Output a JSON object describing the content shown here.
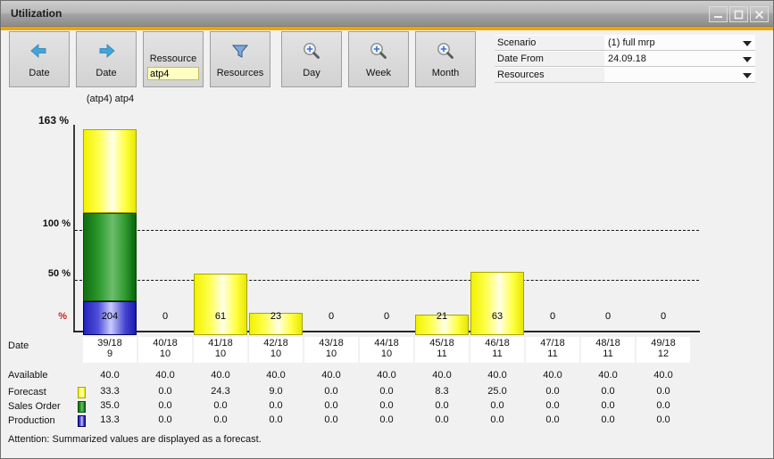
{
  "window": {
    "title": "Utilization",
    "controls": {
      "minimize": "minimize",
      "maximize": "maximize",
      "close": "close"
    }
  },
  "toolbar": {
    "buttons": [
      {
        "label": "Date",
        "icon": "arrow-left"
      },
      {
        "label": "Date",
        "icon": "arrow-right"
      },
      {
        "label": "Ressource",
        "icon": "text-input",
        "value": "atp4"
      },
      {
        "label": "Resources",
        "icon": "filter"
      },
      {
        "label": "Day",
        "icon": "zoom-magnifier"
      },
      {
        "label": "Week",
        "icon": "zoom-magnifier"
      },
      {
        "label": "Month",
        "icon": "zoom-magnifier"
      }
    ]
  },
  "form": {
    "fields": [
      {
        "label": "Scenario",
        "value": "(1) full mrp"
      },
      {
        "label": "Date From",
        "value": "24.09.18"
      },
      {
        "label": "Resources",
        "value": ""
      }
    ]
  },
  "chart_data": {
    "type": "bar",
    "title": "(atp4) atp4",
    "y_axis": {
      "top_label": "163 %",
      "gridlines": [
        {
          "label": "100 %",
          "percent": 100
        },
        {
          "label": "50 %",
          "percent": 50
        }
      ],
      "bottom_label": "%"
    },
    "categories_week": [
      "39/18",
      "40/18",
      "41/18",
      "42/18",
      "43/18",
      "44/18",
      "45/18",
      "46/18",
      "47/18",
      "48/18",
      "49/18"
    ],
    "categories_month": [
      "9",
      "10",
      "10",
      "10",
      "10",
      "10",
      "11",
      "11",
      "11",
      "11",
      "12"
    ],
    "utilization_percent": [
      204,
      0,
      61,
      23,
      0,
      0,
      21,
      63,
      0,
      0,
      0
    ],
    "available": [
      40.0,
      40.0,
      40.0,
      40.0,
      40.0,
      40.0,
      40.0,
      40.0,
      40.0,
      40.0,
      40.0
    ],
    "series": [
      {
        "name": "Forecast",
        "css": "forecast",
        "color": "#ffff4d",
        "values": [
          33.3,
          0.0,
          24.3,
          9.0,
          0.0,
          0.0,
          8.3,
          25.0,
          0.0,
          0.0,
          0.0
        ]
      },
      {
        "name": "Sales Order",
        "css": "sales",
        "color": "#2f9a2f",
        "values": [
          35.0,
          0.0,
          0.0,
          0.0,
          0.0,
          0.0,
          0.0,
          0.0,
          0.0,
          0.0,
          0.0
        ]
      },
      {
        "name": "Production",
        "css": "production",
        "color": "#4d4dd9",
        "values": [
          13.3,
          0.0,
          0.0,
          0.0,
          0.0,
          0.0,
          0.0,
          0.0,
          0.0,
          0.0,
          0.0
        ]
      }
    ],
    "legend_position": "left-of-table-rows",
    "grid": "dashed-horizontal"
  },
  "table": {
    "date_label": "Date",
    "available_label": "Available"
  },
  "footer": {
    "attention": "Attention: Summarized values are displayed as a forecast."
  },
  "colors": {
    "accent_orange": "#f0a400",
    "percent_label_red": "#cc2222",
    "forecast_yellow": "#ffff4d",
    "sales_green": "#2f9a2f",
    "production_blue": "#4d4dd9"
  }
}
